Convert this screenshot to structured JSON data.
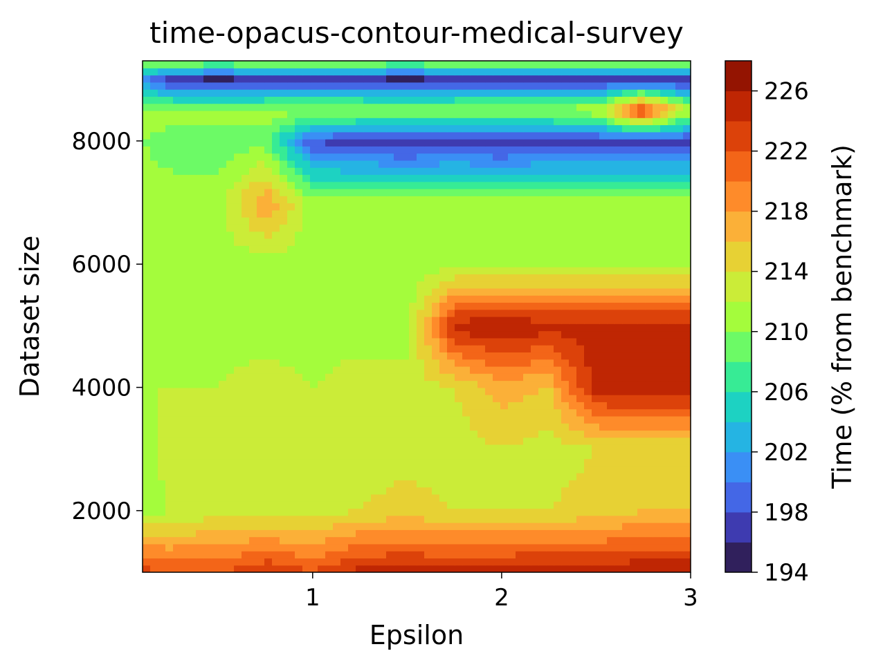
{
  "chart_data": {
    "type": "contour",
    "title": "time-opacus-contour-medical-survey",
    "xlabel": "Epsilon",
    "ylabel": "Dataset size",
    "colorbar_label": "Time (% from benchmark)",
    "x": [
      0.1,
      0.25,
      0.5,
      0.75,
      1.0,
      1.25,
      1.5,
      1.75,
      2.0,
      2.25,
      2.5,
      2.75,
      3.0
    ],
    "y": [
      1000,
      2000,
      3000,
      4000,
      5000,
      6000,
      7000,
      8000,
      8500,
      9000,
      9300
    ],
    "z": [
      [
        223,
        222,
        222,
        224,
        222,
        225,
        225,
        225,
        225,
        226,
        225,
        226,
        226
      ],
      [
        211,
        212,
        213,
        213,
        213,
        214,
        215,
        214,
        214,
        214,
        215,
        216,
        216
      ],
      [
        211,
        213,
        213,
        213,
        213,
        213,
        213,
        213,
        214,
        213,
        214,
        214,
        214
      ],
      [
        212,
        212,
        212,
        213,
        212,
        213,
        213,
        214,
        217,
        216,
        225,
        226,
        226
      ],
      [
        211,
        211,
        211,
        211,
        211,
        211,
        211,
        225,
        226,
        225,
        225,
        225,
        225
      ],
      [
        211,
        211,
        211,
        211,
        211,
        211,
        211,
        211,
        211,
        211,
        211,
        211,
        211
      ],
      [
        211,
        211,
        211,
        218,
        211,
        211,
        211,
        211,
        211,
        211,
        211,
        211,
        211
      ],
      [
        210,
        209,
        209,
        209,
        198,
        197,
        196,
        197,
        196,
        197,
        197,
        197,
        197
      ],
      [
        211,
        211,
        211,
        211,
        211,
        211,
        211,
        211,
        211,
        211,
        212,
        224,
        211
      ],
      [
        201,
        196,
        195,
        196,
        196,
        196,
        195,
        196,
        196,
        196,
        196,
        196,
        196
      ],
      [
        211,
        211,
        211,
        211,
        211,
        211,
        211,
        211,
        211,
        211,
        211,
        211,
        211
      ]
    ],
    "xlim": [
      0.1,
      3.0
    ],
    "ylim": [
      1000,
      9300
    ],
    "xticks": [
      1,
      2,
      3
    ],
    "xtick_labels": [
      "1",
      "2",
      "3"
    ],
    "yticks": [
      2000,
      4000,
      6000,
      8000
    ],
    "ytick_labels": [
      "2000",
      "4000",
      "6000",
      "8000"
    ],
    "clim": [
      194,
      228
    ],
    "levels": [
      194,
      196,
      198,
      200,
      202,
      204,
      206,
      208,
      210,
      212,
      214,
      216,
      218,
      220,
      222,
      224,
      226,
      228
    ],
    "level_colors": [
      "#30205c",
      "#3e3bb0",
      "#4467e6",
      "#3a8ff5",
      "#25b4e3",
      "#1dd2c2",
      "#37eb95",
      "#6cfa66",
      "#a4fc3c",
      "#cbec38",
      "#e7d134",
      "#fbb038",
      "#fe8b2a",
      "#f36518",
      "#dc420a",
      "#bf2603",
      "#941401"
    ],
    "colorbar_ticks": [
      194,
      198,
      202,
      206,
      210,
      214,
      218,
      222,
      226
    ],
    "colorbar_tick_labels": [
      "194",
      "198",
      "202",
      "206",
      "210",
      "214",
      "218",
      "222",
      "226"
    ],
    "colormap": "turbo"
  }
}
